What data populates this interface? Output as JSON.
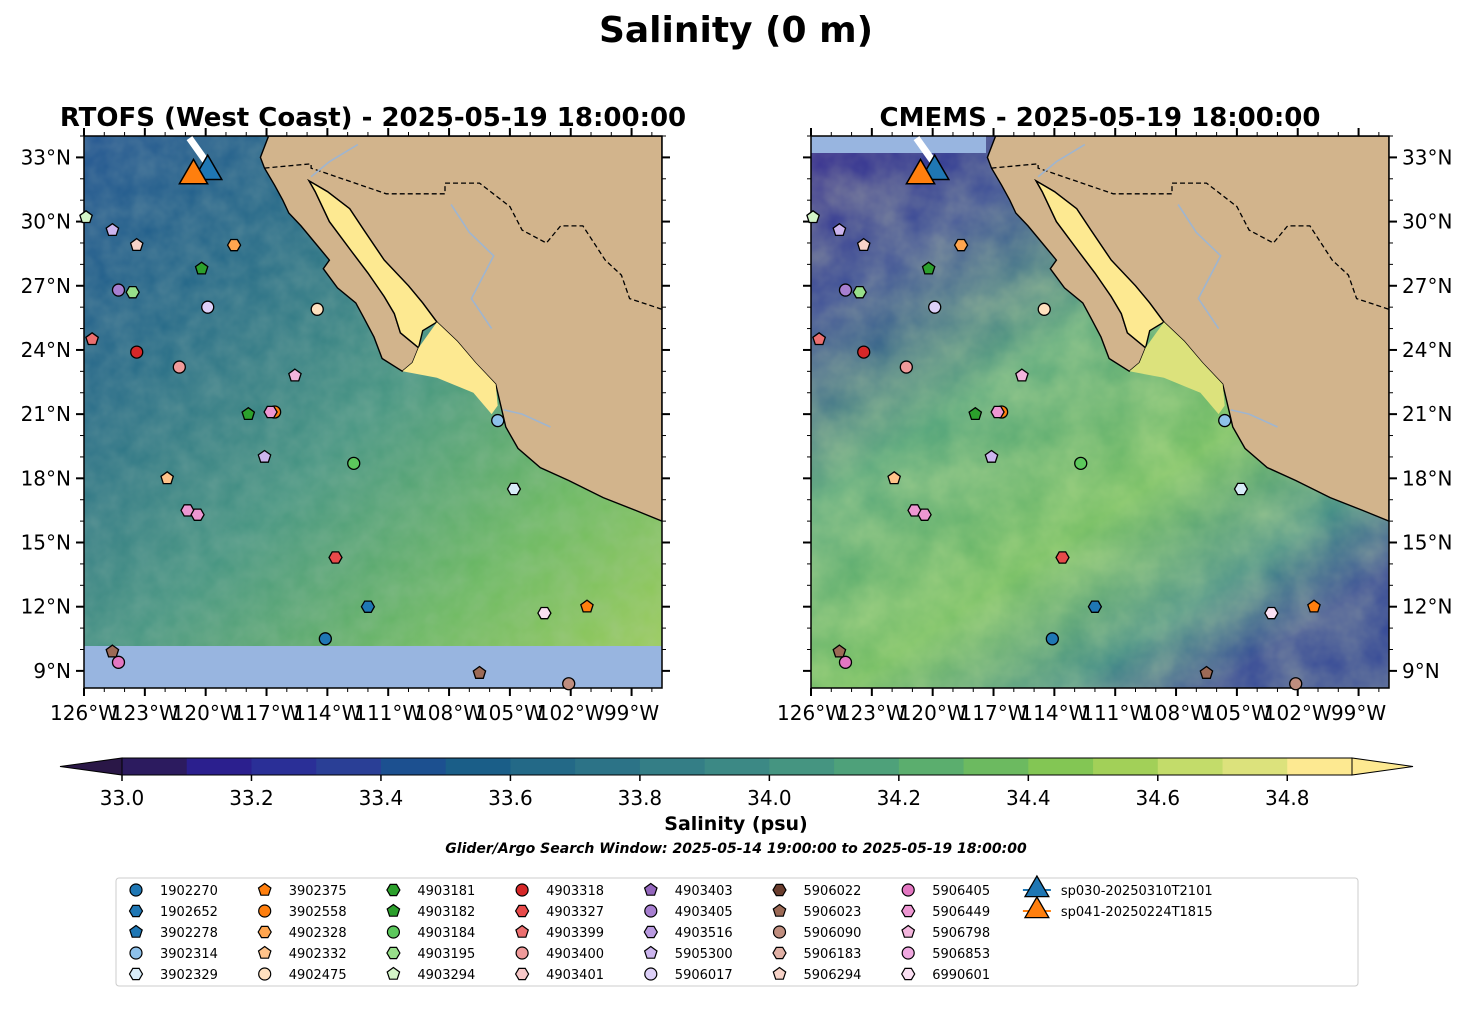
{
  "figure": {
    "title": "Salinity (0 m)",
    "window_text": "Glider/Argo Search Window: 2025-05-14 19:00:00 to 2025-05-19 18:00:00"
  },
  "panels": [
    {
      "id": "rtofs",
      "title": "RTOFS (West Coast) - 2025-05-19 18:00:00",
      "lat_ticks_side": "left"
    },
    {
      "id": "cmems",
      "title": "CMEMS - 2025-05-19 18:00:00",
      "lat_ticks_side": "right"
    }
  ],
  "colorbar": {
    "label": "Salinity (psu)",
    "range": [
      32.9,
      34.9
    ],
    "extend": "both",
    "tick_values": [
      33.0,
      33.2,
      33.4,
      33.6,
      33.8,
      34.0,
      34.2,
      34.4,
      34.6,
      34.8
    ],
    "tick_labels": [
      "33.0",
      "33.2",
      "33.4",
      "33.6",
      "33.8",
      "34.0",
      "34.2",
      "34.4",
      "34.6",
      "34.8"
    ],
    "colors": [
      "#2c1b5f",
      "#2b1f8e",
      "#2a2f97",
      "#2a3f96",
      "#1c5090",
      "#1a5e88",
      "#236987",
      "#2c7387",
      "#347e86",
      "#3c8985",
      "#459581",
      "#4ea17a",
      "#5bae6e",
      "#6cba60",
      "#83c654",
      "#a2d058",
      "#c3dc6a",
      "#dce27c",
      "#fde991"
    ]
  },
  "chart_data": {
    "type": "scatter",
    "title": "Salinity (0 m)",
    "x_axis": {
      "label": "",
      "range": [
        -126,
        -97.5
      ],
      "tick_values": [
        -126,
        -123,
        -120,
        -117,
        -114,
        -111,
        -108,
        -105,
        -102,
        -99
      ],
      "tick_labels": [
        "126°W",
        "123°W",
        "120°W",
        "117°W",
        "114°W",
        "111°W",
        "108°W",
        "105°W",
        "102°W",
        "99°W"
      ]
    },
    "y_axis": {
      "label": "",
      "range": [
        8.2,
        34
      ],
      "tick_values": [
        9,
        12,
        15,
        18,
        21,
        24,
        27,
        30,
        33
      ],
      "tick_labels": [
        "9°N",
        "12°N",
        "15°N",
        "18°N",
        "21°N",
        "24°N",
        "27°N",
        "30°N",
        "33°N"
      ]
    },
    "grid": false,
    "legend_placement": "bottom",
    "series": [
      {
        "name": "1902270",
        "marker": "o",
        "color": "#1f77b4",
        "points": [
          [
            -114.1,
            10.5
          ]
        ]
      },
      {
        "name": "1902652",
        "marker": "h",
        "color": "#1f77b4",
        "points": [
          [
            -112.0,
            12.0
          ]
        ]
      },
      {
        "name": "3902278",
        "marker": "p",
        "color": "#1f77b4",
        "points": []
      },
      {
        "name": "3902314",
        "marker": "o",
        "color": "#8ec1ea",
        "points": [
          [
            -105.6,
            20.7
          ]
        ]
      },
      {
        "name": "3902329",
        "marker": "h",
        "color": "#d8ecf8",
        "points": [
          [
            -104.8,
            17.5
          ]
        ]
      },
      {
        "name": "3902375",
        "marker": "p",
        "color": "#ff7f0e",
        "points": [
          [
            -101.2,
            12.0
          ]
        ]
      },
      {
        "name": "3902558",
        "marker": "o",
        "color": "#ff7f0e",
        "points": [
          [
            -116.6,
            21.1
          ]
        ]
      },
      {
        "name": "4902328",
        "marker": "h",
        "color": "#ffa54f",
        "points": [
          [
            -118.6,
            28.9
          ]
        ]
      },
      {
        "name": "4902332",
        "marker": "p",
        "color": "#ffc38a",
        "points": [
          [
            -121.9,
            18.0
          ]
        ]
      },
      {
        "name": "4902475",
        "marker": "o",
        "color": "#ffe1bf",
        "points": [
          [
            -114.5,
            25.9
          ]
        ]
      },
      {
        "name": "4903181",
        "marker": "h",
        "color": "#2ca02c",
        "points": []
      },
      {
        "name": "4903182",
        "marker": "p",
        "color": "#2ca02c",
        "points": [
          [
            -120.2,
            27.8
          ],
          [
            -117.9,
            21.0
          ]
        ]
      },
      {
        "name": "4903184",
        "marker": "o",
        "color": "#5cc85c",
        "points": [
          [
            -112.7,
            18.7
          ]
        ]
      },
      {
        "name": "4903195",
        "marker": "h",
        "color": "#98df8a",
        "points": [
          [
            -123.6,
            26.7
          ]
        ]
      },
      {
        "name": "4903294",
        "marker": "p",
        "color": "#d4f5c8",
        "points": [
          [
            -125.9,
            30.2
          ]
        ]
      },
      {
        "name": "4903318",
        "marker": "o",
        "color": "#d62728",
        "points": [
          [
            -123.4,
            23.9
          ]
        ]
      },
      {
        "name": "4903327",
        "marker": "h",
        "color": "#e84a4a",
        "points": [
          [
            -113.6,
            14.3
          ]
        ]
      },
      {
        "name": "4903399",
        "marker": "p",
        "color": "#ec6f6f",
        "points": [
          [
            -125.6,
            24.5
          ]
        ]
      },
      {
        "name": "4903400",
        "marker": "o",
        "color": "#f09a9a",
        "points": [
          [
            -121.3,
            23.2
          ]
        ]
      },
      {
        "name": "4903401",
        "marker": "h",
        "color": "#f7c8c8",
        "points": []
      },
      {
        "name": "4903403",
        "marker": "p",
        "color": "#9467bd",
        "points": []
      },
      {
        "name": "4903405",
        "marker": "o",
        "color": "#a77fd0",
        "points": [
          [
            -124.3,
            26.8
          ]
        ]
      },
      {
        "name": "4903516",
        "marker": "h",
        "color": "#b99ae0",
        "points": []
      },
      {
        "name": "5905300",
        "marker": "p",
        "color": "#ccb5ee",
        "points": [
          [
            -124.6,
            29.6
          ],
          [
            -117.1,
            19.0
          ]
        ]
      },
      {
        "name": "5906017",
        "marker": "o",
        "color": "#ddd0f8",
        "points": [
          [
            -119.9,
            26.0
          ]
        ]
      },
      {
        "name": "5906022",
        "marker": "h",
        "color": "#6a3d2e",
        "points": []
      },
      {
        "name": "5906023",
        "marker": "p",
        "color": "#9c6a56",
        "points": [
          [
            -124.6,
            9.9
          ],
          [
            -106.5,
            8.9
          ]
        ]
      },
      {
        "name": "5906090",
        "marker": "o",
        "color": "#bf8d7e",
        "points": [
          [
            -102.1,
            8.4
          ]
        ]
      },
      {
        "name": "5906183",
        "marker": "h",
        "color": "#e0b0a5",
        "points": []
      },
      {
        "name": "5906294",
        "marker": "p",
        "color": "#f7d3c8",
        "points": [
          [
            -123.4,
            28.9
          ]
        ]
      },
      {
        "name": "5906405",
        "marker": "o",
        "color": "#e377c2",
        "points": [
          [
            -124.3,
            9.4
          ]
        ]
      },
      {
        "name": "5906449",
        "marker": "h",
        "color": "#ed97d2",
        "points": [
          [
            -116.8,
            21.1
          ],
          [
            -120.9,
            16.5
          ],
          [
            -120.4,
            16.3
          ]
        ]
      },
      {
        "name": "5906798",
        "marker": "p",
        "color": "#f3b5dd",
        "points": [
          [
            -115.6,
            22.8
          ]
        ]
      },
      {
        "name": "5906853",
        "marker": "o",
        "color": "#f0a8e0",
        "points": []
      },
      {
        "name": "6990601",
        "marker": "h",
        "color": "#fbe0f3",
        "points": [
          [
            -103.3,
            11.7
          ]
        ]
      },
      {
        "name": "sp030-20250310T2101",
        "marker": "^",
        "color": "#1f77b4",
        "points": [
          [
            -119.9,
            32.5
          ]
        ]
      },
      {
        "name": "sp041-20250224T1815",
        "marker": "^",
        "color": "#ff7f0e",
        "points": [
          [
            -120.6,
            32.3
          ]
        ]
      }
    ]
  }
}
